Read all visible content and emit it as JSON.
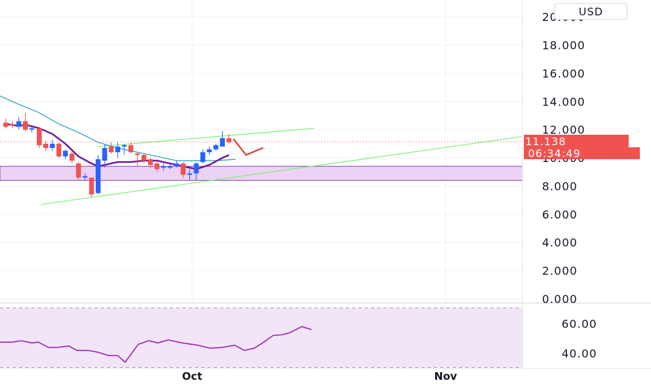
{
  "currency_label": "USD",
  "chart_data": [
    {
      "type": "candlestick",
      "y_ticks": [
        "20.000",
        "18.000",
        "16.000",
        "14.000",
        "12.000",
        "10.000",
        "8.000",
        "6.000",
        "4.000",
        "2.000",
        "0.000"
      ],
      "y_tick_values": [
        20,
        18,
        16,
        14,
        12,
        10,
        8,
        6,
        4,
        2,
        0
      ],
      "ylim": [
        -0.3,
        21.2
      ],
      "x_ticks": [
        "Oct",
        "Nov"
      ],
      "x_tick_days": [
        0,
        31
      ],
      "xlim": [
        -23.5,
        40.4
      ],
      "last_price": "11.138",
      "last_price_value": 11.138,
      "countdown": "06:34:49",
      "colors": {
        "up": "#2962ff",
        "down": "#ef5350",
        "ma_fast": "#6a1b9a",
        "ma_slow": "#26a0b8",
        "trend": "#7bf07b",
        "zone_fill": "#e6c3f0",
        "zone_border": "#8e44ad",
        "projection": "#e53935"
      },
      "candles": [
        {
          "d": -22.8,
          "o": 12.5,
          "h": 12.8,
          "l": 12.1,
          "c": 12.2
        },
        {
          "d": -22.0,
          "o": 12.4,
          "h": 12.6,
          "l": 12.1,
          "c": 12.3
        },
        {
          "d": -21.2,
          "o": 12.2,
          "h": 12.9,
          "l": 12.0,
          "c": 12.6
        },
        {
          "d": -20.4,
          "o": 12.6,
          "h": 13.2,
          "l": 11.9,
          "c": 12.0
        },
        {
          "d": -19.6,
          "o": 12.0,
          "h": 12.2,
          "l": 11.8,
          "c": 12.1
        },
        {
          "d": -18.7,
          "o": 12.1,
          "h": 12.1,
          "l": 10.7,
          "c": 10.9
        },
        {
          "d": -17.9,
          "o": 11.0,
          "h": 11.2,
          "l": 10.5,
          "c": 10.7
        },
        {
          "d": -17.1,
          "o": 10.7,
          "h": 11.3,
          "l": 10.5,
          "c": 11.0
        },
        {
          "d": -16.3,
          "o": 11.0,
          "h": 11.1,
          "l": 10.0,
          "c": 10.1
        },
        {
          "d": -15.5,
          "o": 10.1,
          "h": 10.6,
          "l": 9.9,
          "c": 10.5
        },
        {
          "d": -14.7,
          "o": 10.3,
          "h": 10.5,
          "l": 9.6,
          "c": 9.8
        },
        {
          "d": -13.9,
          "o": 9.6,
          "h": 9.7,
          "l": 8.4,
          "c": 8.6
        },
        {
          "d": -13.1,
          "o": 8.6,
          "h": 8.9,
          "l": 8.4,
          "c": 8.7
        },
        {
          "d": -12.3,
          "o": 8.6,
          "h": 8.6,
          "l": 7.2,
          "c": 7.4
        },
        {
          "d": -11.5,
          "o": 7.5,
          "h": 10.2,
          "l": 7.4,
          "c": 9.9
        },
        {
          "d": -10.7,
          "o": 9.8,
          "h": 11.0,
          "l": 9.3,
          "c": 10.7
        },
        {
          "d": -9.9,
          "o": 10.8,
          "h": 11.1,
          "l": 10.3,
          "c": 10.4
        },
        {
          "d": -9.1,
          "o": 10.4,
          "h": 11.1,
          "l": 10.0,
          "c": 10.8
        },
        {
          "d": -8.3,
          "o": 10.8,
          "h": 11.0,
          "l": 10.2,
          "c": 10.9
        },
        {
          "d": -7.5,
          "o": 10.9,
          "h": 11.1,
          "l": 10.3,
          "c": 10.4
        },
        {
          "d": -6.7,
          "o": 10.3,
          "h": 10.4,
          "l": 9.4,
          "c": 10.2
        },
        {
          "d": -5.9,
          "o": 10.2,
          "h": 10.3,
          "l": 9.6,
          "c": 9.8
        },
        {
          "d": -5.1,
          "o": 9.9,
          "h": 10.0,
          "l": 9.3,
          "c": 9.5
        },
        {
          "d": -4.3,
          "o": 9.6,
          "h": 9.8,
          "l": 9.0,
          "c": 9.2
        },
        {
          "d": -3.5,
          "o": 9.3,
          "h": 9.6,
          "l": 9.1,
          "c": 9.4
        },
        {
          "d": -2.7,
          "o": 9.3,
          "h": 9.6,
          "l": 9.2,
          "c": 9.4
        },
        {
          "d": -1.9,
          "o": 9.4,
          "h": 9.8,
          "l": 9.3,
          "c": 9.6
        },
        {
          "d": -1.1,
          "o": 9.6,
          "h": 9.7,
          "l": 8.6,
          "c": 8.8
        },
        {
          "d": -0.3,
          "o": 8.8,
          "h": 9.2,
          "l": 8.4,
          "c": 8.9
        },
        {
          "d": 0.5,
          "o": 8.9,
          "h": 9.7,
          "l": 8.4,
          "c": 9.6
        },
        {
          "d": 1.3,
          "o": 9.7,
          "h": 10.6,
          "l": 9.6,
          "c": 10.4
        },
        {
          "d": 2.1,
          "o": 10.4,
          "h": 10.8,
          "l": 10.2,
          "c": 10.6
        },
        {
          "d": 2.9,
          "o": 10.6,
          "h": 11.0,
          "l": 10.5,
          "c": 10.9
        },
        {
          "d": 3.7,
          "o": 10.8,
          "h": 11.9,
          "l": 10.8,
          "c": 11.4
        },
        {
          "d": 4.5,
          "o": 11.4,
          "h": 11.7,
          "l": 11.0,
          "c": 11.1
        }
      ],
      "ma_fast": [
        {
          "d": -22.8,
          "v": 12.4
        },
        {
          "d": -21.6,
          "v": 12.3
        },
        {
          "d": -20.0,
          "v": 12.3
        },
        {
          "d": -18.7,
          "v": 12.1
        },
        {
          "d": -17.1,
          "v": 11.7
        },
        {
          "d": -15.5,
          "v": 11.0
        },
        {
          "d": -13.9,
          "v": 10.1
        },
        {
          "d": -12.3,
          "v": 9.6
        },
        {
          "d": -11.5,
          "v": 9.4
        },
        {
          "d": -10.7,
          "v": 9.5
        },
        {
          "d": -9.1,
          "v": 9.7
        },
        {
          "d": -7.5,
          "v": 9.7
        },
        {
          "d": -5.9,
          "v": 9.8
        },
        {
          "d": -4.3,
          "v": 9.8
        },
        {
          "d": -2.7,
          "v": 9.6
        },
        {
          "d": -1.1,
          "v": 9.4
        },
        {
          "d": 0.5,
          "v": 9.2
        },
        {
          "d": 2.1,
          "v": 9.5
        },
        {
          "d": 3.7,
          "v": 10.0
        },
        {
          "d": 4.5,
          "v": 10.2
        }
      ],
      "ma_slow": [
        {
          "d": -23.5,
          "v": 14.4
        },
        {
          "d": -21.2,
          "v": 13.8
        },
        {
          "d": -18.7,
          "v": 13.2
        },
        {
          "d": -16.3,
          "v": 12.4
        },
        {
          "d": -13.9,
          "v": 11.8
        },
        {
          "d": -11.5,
          "v": 11.1
        },
        {
          "d": -9.1,
          "v": 10.7
        },
        {
          "d": -6.7,
          "v": 10.4
        },
        {
          "d": -4.3,
          "v": 10.1
        },
        {
          "d": -1.9,
          "v": 9.8
        },
        {
          "d": 0.5,
          "v": 9.8
        },
        {
          "d": 2.9,
          "v": 9.8
        },
        {
          "d": 5.3,
          "v": 9.9
        }
      ],
      "trend_lines": [
        {
          "d1": -18.4,
          "v1": 6.7,
          "d2": 40.3,
          "v2": 11.5
        },
        {
          "d1": -11.5,
          "v1": 10.8,
          "d2": 15.0,
          "v2": 12.1
        }
      ],
      "zone": {
        "v1": 8.4,
        "v2": 9.4
      },
      "projection": [
        {
          "d": 5.1,
          "v": 11.3
        },
        {
          "d": 6.6,
          "v": 10.2
        },
        {
          "d": 8.6,
          "v": 10.7
        }
      ]
    },
    {
      "type": "line",
      "y_ticks": [
        "60.00",
        "40.00"
      ],
      "y_tick_values": [
        60,
        40
      ],
      "ylim": [
        30.2,
        72.9
      ],
      "band": [
        30.5,
        70.5
      ],
      "color": "#9c27b0",
      "band_fill": "#f3e5f8",
      "values": [
        {
          "d": -23.5,
          "v": 47.5
        },
        {
          "d": -22.0,
          "v": 47.5
        },
        {
          "d": -20.9,
          "v": 48.5
        },
        {
          "d": -19.6,
          "v": 47.0
        },
        {
          "d": -18.8,
          "v": 47.5
        },
        {
          "d": -17.6,
          "v": 44.0
        },
        {
          "d": -16.4,
          "v": 44.0
        },
        {
          "d": -15.1,
          "v": 45.0
        },
        {
          "d": -14.1,
          "v": 42.0
        },
        {
          "d": -12.7,
          "v": 42.0
        },
        {
          "d": -11.7,
          "v": 41.0
        },
        {
          "d": -10.2,
          "v": 38.5
        },
        {
          "d": -9.1,
          "v": 38.5
        },
        {
          "d": -8.2,
          "v": 34.0
        },
        {
          "d": -6.6,
          "v": 46.0
        },
        {
          "d": -5.3,
          "v": 48.5
        },
        {
          "d": -4.2,
          "v": 47.0
        },
        {
          "d": -2.9,
          "v": 49.0
        },
        {
          "d": -1.2,
          "v": 47.0
        },
        {
          "d": 0.7,
          "v": 45.5
        },
        {
          "d": 2.2,
          "v": 43.5
        },
        {
          "d": 3.7,
          "v": 44.0
        },
        {
          "d": 5.2,
          "v": 45.5
        },
        {
          "d": 6.4,
          "v": 42.0
        },
        {
          "d": 7.6,
          "v": 43.5
        },
        {
          "d": 8.6,
          "v": 47.0
        },
        {
          "d": 9.9,
          "v": 52.0
        },
        {
          "d": 11.0,
          "v": 52.5
        },
        {
          "d": 12.0,
          "v": 54.0
        },
        {
          "d": 13.4,
          "v": 58.0
        },
        {
          "d": 14.6,
          "v": 56.0
        }
      ]
    }
  ]
}
